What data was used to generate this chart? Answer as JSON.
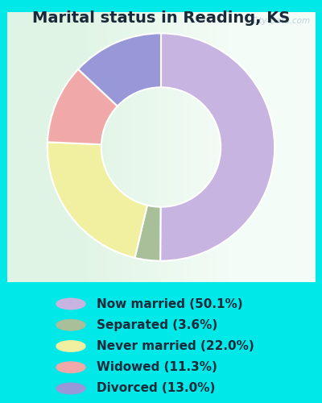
{
  "title": "Marital status in Reading, KS",
  "slices": [
    50.1,
    3.6,
    22.0,
    11.3,
    13.0
  ],
  "labels": [
    "Now married (50.1%)",
    "Separated (3.6%)",
    "Never married (22.0%)",
    "Widowed (11.3%)",
    "Divorced (13.0%)"
  ],
  "colors": [
    "#c8b4e0",
    "#a8bf9a",
    "#f0f0a0",
    "#f0a8a8",
    "#9898d8"
  ],
  "background_outer": "#00e8e8",
  "title_fontsize": 14,
  "legend_fontsize": 11,
  "watermark": "City-Data.com",
  "startangle": 90,
  "donut_width": 0.52
}
